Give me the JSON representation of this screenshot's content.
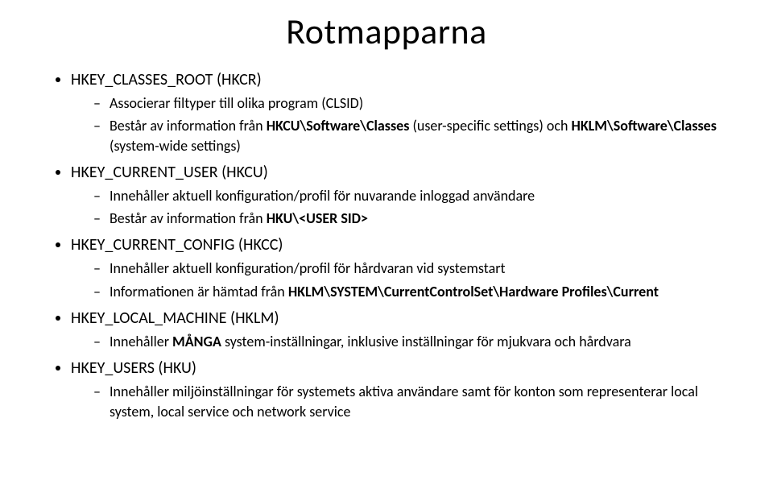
{
  "title": "Rotmapparna",
  "items": [
    {
      "label": "HKEY_CLASSES_ROOT (HKCR)",
      "subs": [
        {
          "segments": [
            {
              "t": "Associerar filtyper till olika program (CLSID)",
              "b": false
            }
          ]
        },
        {
          "segments": [
            {
              "t": "Består av information från ",
              "b": false
            },
            {
              "t": "HKCU\\Software\\Classes",
              "b": true
            },
            {
              "t": " (user-specific settings) och ",
              "b": false
            },
            {
              "t": "HKLM\\Software\\Classes",
              "b": true
            },
            {
              "t": " (system-wide settings)",
              "b": false
            }
          ]
        }
      ]
    },
    {
      "label": "HKEY_CURRENT_USER (HKCU)",
      "subs": [
        {
          "segments": [
            {
              "t": "Innehåller aktuell konfiguration/profil för nuvarande inloggad användare",
              "b": false
            }
          ]
        },
        {
          "segments": [
            {
              "t": "Består av information från ",
              "b": false
            },
            {
              "t": "HKU\\<USER SID>",
              "b": true
            }
          ]
        }
      ]
    },
    {
      "label": "HKEY_CURRENT_CONFIG (HKCC)",
      "subs": [
        {
          "segments": [
            {
              "t": "Innehåller aktuell konfiguration/profil för hårdvaran vid systemstart",
              "b": false
            }
          ]
        },
        {
          "segments": [
            {
              "t": "Informationen är hämtad från ",
              "b": false
            },
            {
              "t": "HKLM\\SYSTEM\\CurrentControlSet\\Hardware Profiles\\Current",
              "b": true
            }
          ]
        }
      ]
    },
    {
      "label": "HKEY_LOCAL_MACHINE (HKLM)",
      "subs": [
        {
          "segments": [
            {
              "t": "Innehåller ",
              "b": false
            },
            {
              "t": "MÅNGA",
              "b": true
            },
            {
              "t": " system-inställningar, inklusive inställningar för mjukvara och hårdvara",
              "b": false
            }
          ]
        }
      ]
    },
    {
      "label": "HKEY_USERS (HKU)",
      "subs": [
        {
          "segments": [
            {
              "t": "Innehåller miljöinställningar för systemets aktiva användare samt för konton som representerar local system, local service och network service",
              "b": false
            }
          ]
        }
      ]
    }
  ],
  "style": {
    "background": "#ffffff",
    "text_color": "#000000",
    "title_fontsize": 44,
    "level1_fontsize": 20,
    "level2_fontsize": 18,
    "font_family": "Calibri"
  }
}
